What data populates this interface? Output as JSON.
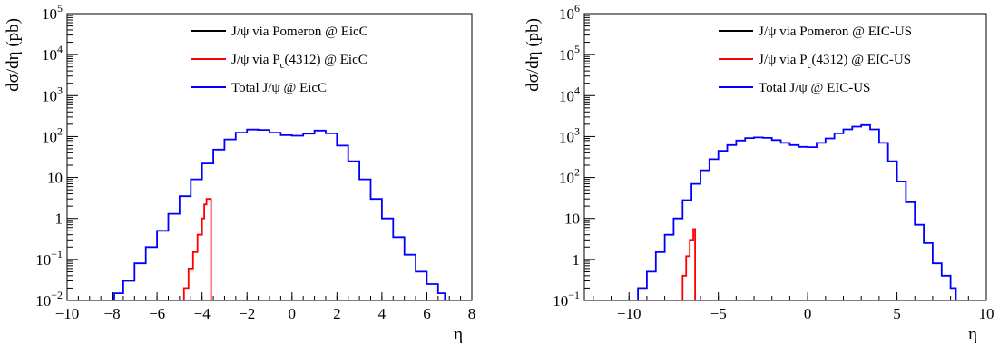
{
  "chart_data": [
    {
      "type": "line",
      "panel": "left",
      "xlabel": "η",
      "ylabel": "dσ/dη (pb)",
      "xlim": [
        -10,
        8
      ],
      "ylim": [
        0.01,
        100000
      ],
      "yscale": "log",
      "grid": false,
      "legend_position": "top-right",
      "x_ticks": [
        -10,
        -8,
        -6,
        -4,
        -2,
        0,
        2,
        4,
        6,
        8
      ],
      "y_ticks": [
        {
          "value": 0.01,
          "base": "10",
          "exp": "−2"
        },
        {
          "value": 0.1,
          "base": "10",
          "exp": "−1"
        },
        {
          "value": 1,
          "base": "1",
          "exp": ""
        },
        {
          "value": 10,
          "base": "10",
          "exp": ""
        },
        {
          "value": 100,
          "base": "10",
          "exp": "2"
        },
        {
          "value": 1000,
          "base": "10",
          "exp": "3"
        },
        {
          "value": 10000,
          "base": "10",
          "exp": "4"
        },
        {
          "value": 100000,
          "base": "10",
          "exp": "5"
        }
      ],
      "series": [
        {
          "name": "J/ψ via Pomeron @ EicC",
          "name_parts": [
            "J/ψ via Pomeron @ EicC"
          ],
          "color": "#000000",
          "x": [],
          "y": []
        },
        {
          "name": "J/ψ via P_c(4312) @ EicC",
          "name_parts": [
            "J/ψ via P",
            "c",
            "(4312) @ EicC"
          ],
          "color": "#ff0000",
          "x": [
            -5.0,
            -4.8,
            -4.6,
            -4.4,
            -4.2,
            -4.0,
            -3.9,
            -3.8,
            -3.7,
            -3.6
          ],
          "y": [
            0.01,
            0.02,
            0.06,
            0.15,
            0.4,
            1.0,
            2.2,
            3.0,
            3.0,
            0.01
          ]
        },
        {
          "name": "Total J/ψ @ EicC",
          "name_parts": [
            "Total J/ψ @ EicC"
          ],
          "color": "#0000ff",
          "x": [
            -7.9,
            -7.5,
            -7.0,
            -6.5,
            -6.0,
            -5.5,
            -5.0,
            -4.5,
            -4.0,
            -3.5,
            -3.0,
            -2.5,
            -2.0,
            -1.5,
            -1.0,
            -0.5,
            0.0,
            0.5,
            1.0,
            1.5,
            2.0,
            2.5,
            3.0,
            3.5,
            4.0,
            4.5,
            5.0,
            5.5,
            6.0,
            6.5,
            6.8
          ],
          "y": [
            0.015,
            0.03,
            0.08,
            0.2,
            0.5,
            1.3,
            3.5,
            9,
            22,
            48,
            85,
            125,
            148,
            145,
            125,
            108,
            105,
            118,
            140,
            120,
            60,
            25,
            9,
            3,
            1.0,
            0.35,
            0.13,
            0.05,
            0.025,
            0.015,
            0.01
          ]
        }
      ]
    },
    {
      "type": "line",
      "panel": "right",
      "xlabel": "η",
      "ylabel": "dσ/dη (pb)",
      "xlim": [
        -12.5,
        10
      ],
      "ylim": [
        0.1,
        1000000
      ],
      "yscale": "log",
      "grid": false,
      "legend_position": "top-right",
      "x_ticks": [
        -10,
        -5,
        0,
        5,
        10
      ],
      "y_ticks": [
        {
          "value": 0.1,
          "base": "10",
          "exp": "−1"
        },
        {
          "value": 1,
          "base": "1",
          "exp": ""
        },
        {
          "value": 10,
          "base": "10",
          "exp": ""
        },
        {
          "value": 100,
          "base": "10",
          "exp": "2"
        },
        {
          "value": 1000,
          "base": "10",
          "exp": "3"
        },
        {
          "value": 10000,
          "base": "10",
          "exp": "4"
        },
        {
          "value": 100000,
          "base": "10",
          "exp": "5"
        },
        {
          "value": 1000000,
          "base": "10",
          "exp": "6"
        }
      ],
      "series": [
        {
          "name": "J/ψ via Pomeron @ EIC-US",
          "name_parts": [
            "J/ψ via Pomeron @ EIC-US"
          ],
          "color": "#000000",
          "x": [],
          "y": []
        },
        {
          "name": "J/ψ via P_c(4312) @ EIC-US",
          "name_parts": [
            "J/ψ via P",
            "c",
            "(4312) @ EIC-US"
          ],
          "color": "#ff0000",
          "x": [
            -7.2,
            -7.0,
            -6.8,
            -6.6,
            -6.4,
            -6.3
          ],
          "y": [
            0.1,
            0.4,
            1.2,
            3.0,
            5.5,
            0.1
          ]
        },
        {
          "name": "Total J/ψ @ EIC-US",
          "name_parts": [
            "Total J/ψ @ EIC-US"
          ],
          "color": "#0000ff",
          "x": [
            -10.2,
            -9.5,
            -9.0,
            -8.5,
            -8.0,
            -7.5,
            -7.0,
            -6.5,
            -6.0,
            -5.5,
            -5.0,
            -4.5,
            -4.0,
            -3.5,
            -3.0,
            -2.5,
            -2.0,
            -1.5,
            -1.0,
            -0.5,
            0.0,
            0.5,
            1.0,
            1.5,
            2.0,
            2.5,
            3.0,
            3.5,
            4.0,
            4.5,
            5.0,
            5.5,
            6.0,
            6.5,
            7.0,
            7.5,
            8.0,
            8.3
          ],
          "y": [
            0.1,
            0.2,
            0.5,
            1.5,
            4,
            10,
            28,
            70,
            150,
            280,
            450,
            620,
            800,
            920,
            950,
            930,
            820,
            700,
            620,
            560,
            550,
            700,
            900,
            1200,
            1500,
            1750,
            1900,
            1500,
            700,
            250,
            80,
            25,
            7,
            2.5,
            0.8,
            0.4,
            0.2,
            0.1
          ]
        }
      ]
    }
  ]
}
